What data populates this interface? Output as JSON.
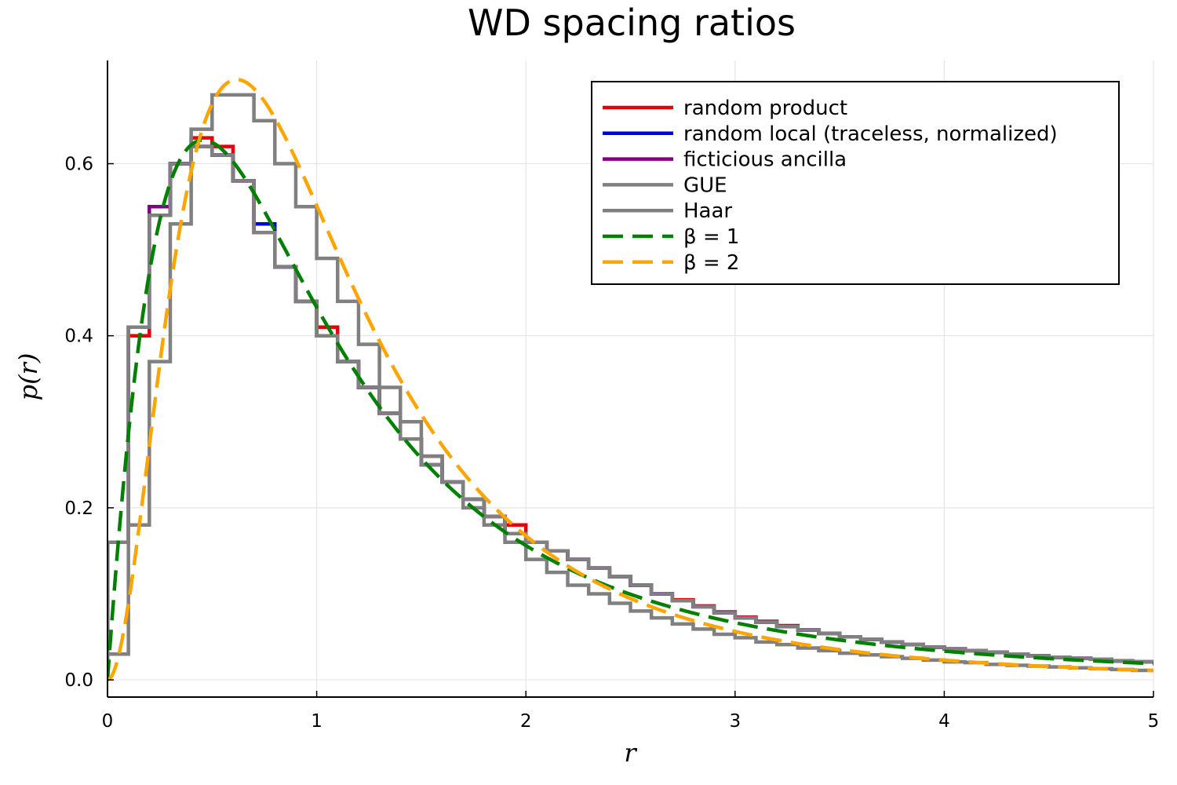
{
  "chart_data": {
    "type": "line",
    "title": "WD spacing ratios",
    "xlabel": "r",
    "ylabel": "p(r)",
    "xlim": [
      0,
      5
    ],
    "ylim": [
      -0.02,
      0.72
    ],
    "x_ticks": [
      0,
      1,
      2,
      3,
      4,
      5
    ],
    "x_tick_labels": [
      "0",
      "1",
      "2",
      "3",
      "4",
      "5"
    ],
    "y_ticks": [
      0.0,
      0.2,
      0.4,
      0.6
    ],
    "y_tick_labels": [
      "0.0",
      "0.2",
      "0.4",
      "0.6"
    ],
    "grid": true,
    "legend_position": "top-right",
    "bin_width": 0.1,
    "histogram_bins_start": [
      0.0,
      0.1,
      0.2,
      0.3,
      0.4,
      0.5,
      0.6,
      0.7,
      0.8,
      0.9,
      1.0,
      1.1,
      1.2,
      1.3,
      1.4,
      1.5,
      1.6,
      1.7,
      1.8,
      1.9,
      2.0,
      2.1,
      2.2,
      2.3,
      2.4,
      2.5,
      2.6,
      2.7,
      2.8,
      2.9,
      3.0,
      3.1,
      3.2,
      3.3,
      3.4,
      3.5,
      3.6,
      3.7,
      3.8,
      3.9,
      4.0,
      4.1,
      4.2,
      4.3,
      4.4,
      4.5,
      4.6,
      4.7,
      4.8,
      4.9
    ],
    "series": [
      {
        "name": "random product",
        "color": "#e6000a",
        "style": "step",
        "values": [
          0.16,
          0.4,
          0.54,
          0.6,
          0.63,
          0.62,
          0.58,
          0.52,
          0.48,
          0.44,
          0.41,
          0.37,
          0.34,
          0.31,
          0.28,
          0.26,
          0.23,
          0.21,
          0.19,
          0.18,
          0.16,
          0.15,
          0.14,
          0.13,
          0.12,
          0.11,
          0.1,
          0.093,
          0.086,
          0.079,
          0.073,
          0.068,
          0.063,
          0.058,
          0.054,
          0.05,
          0.047,
          0.044,
          0.041,
          0.038,
          0.036,
          0.034,
          0.032,
          0.03,
          0.028,
          0.026,
          0.025,
          0.024,
          0.022,
          0.021
        ]
      },
      {
        "name": "random local (traceless, normalized)",
        "color": "#0000e6",
        "style": "step",
        "values": [
          0.16,
          0.41,
          0.54,
          0.6,
          0.62,
          0.61,
          0.58,
          0.53,
          0.48,
          0.44,
          0.4,
          0.37,
          0.34,
          0.31,
          0.28,
          0.25,
          0.23,
          0.21,
          0.19,
          0.17,
          0.16,
          0.15,
          0.14,
          0.13,
          0.12,
          0.11,
          0.1,
          0.092,
          0.085,
          0.078,
          0.072,
          0.067,
          0.062,
          0.058,
          0.054,
          0.05,
          0.047,
          0.044,
          0.041,
          0.038,
          0.036,
          0.034,
          0.032,
          0.03,
          0.028,
          0.026,
          0.025,
          0.024,
          0.022,
          0.021
        ]
      },
      {
        "name": "ficticious ancilla",
        "color": "#800080",
        "style": "step",
        "values": [
          0.16,
          0.41,
          0.55,
          0.6,
          0.62,
          0.61,
          0.58,
          0.52,
          0.48,
          0.44,
          0.4,
          0.37,
          0.34,
          0.31,
          0.28,
          0.25,
          0.23,
          0.21,
          0.19,
          0.17,
          0.16,
          0.15,
          0.14,
          0.13,
          0.12,
          0.11,
          0.1,
          0.092,
          0.085,
          0.078,
          0.072,
          0.067,
          0.062,
          0.058,
          0.054,
          0.05,
          0.047,
          0.044,
          0.041,
          0.038,
          0.036,
          0.034,
          0.032,
          0.03,
          0.028,
          0.026,
          0.025,
          0.024,
          0.022,
          0.021
        ]
      },
      {
        "name": "GUE",
        "color": "#808080",
        "style": "step",
        "values": [
          0.16,
          0.41,
          0.54,
          0.6,
          0.62,
          0.61,
          0.58,
          0.52,
          0.48,
          0.44,
          0.4,
          0.37,
          0.34,
          0.31,
          0.28,
          0.25,
          0.23,
          0.21,
          0.19,
          0.17,
          0.16,
          0.15,
          0.14,
          0.13,
          0.12,
          0.11,
          0.1,
          0.092,
          0.085,
          0.078,
          0.072,
          0.067,
          0.062,
          0.058,
          0.054,
          0.05,
          0.047,
          0.044,
          0.041,
          0.038,
          0.036,
          0.034,
          0.032,
          0.03,
          0.028,
          0.026,
          0.025,
          0.024,
          0.022,
          0.021
        ]
      },
      {
        "name": "Haar",
        "color": "#808080",
        "style": "step",
        "values": [
          0.03,
          0.18,
          0.37,
          0.53,
          0.64,
          0.68,
          0.68,
          0.65,
          0.6,
          0.55,
          0.49,
          0.44,
          0.39,
          0.34,
          0.3,
          0.26,
          0.23,
          0.2,
          0.18,
          0.16,
          0.14,
          0.125,
          0.11,
          0.1,
          0.089,
          0.08,
          0.072,
          0.065,
          0.059,
          0.053,
          0.049,
          0.044,
          0.041,
          0.037,
          0.034,
          0.031,
          0.029,
          0.027,
          0.025,
          0.023,
          0.021,
          0.02,
          0.018,
          0.017,
          0.016,
          0.015,
          0.014,
          0.013,
          0.012,
          0.011
        ]
      },
      {
        "name": "β = 1",
        "color": "#008000",
        "style": "dashed",
        "formula_beta": 1
      },
      {
        "name": "β = 2",
        "color": "#ffa500",
        "style": "dashed",
        "formula_beta": 2
      }
    ]
  }
}
